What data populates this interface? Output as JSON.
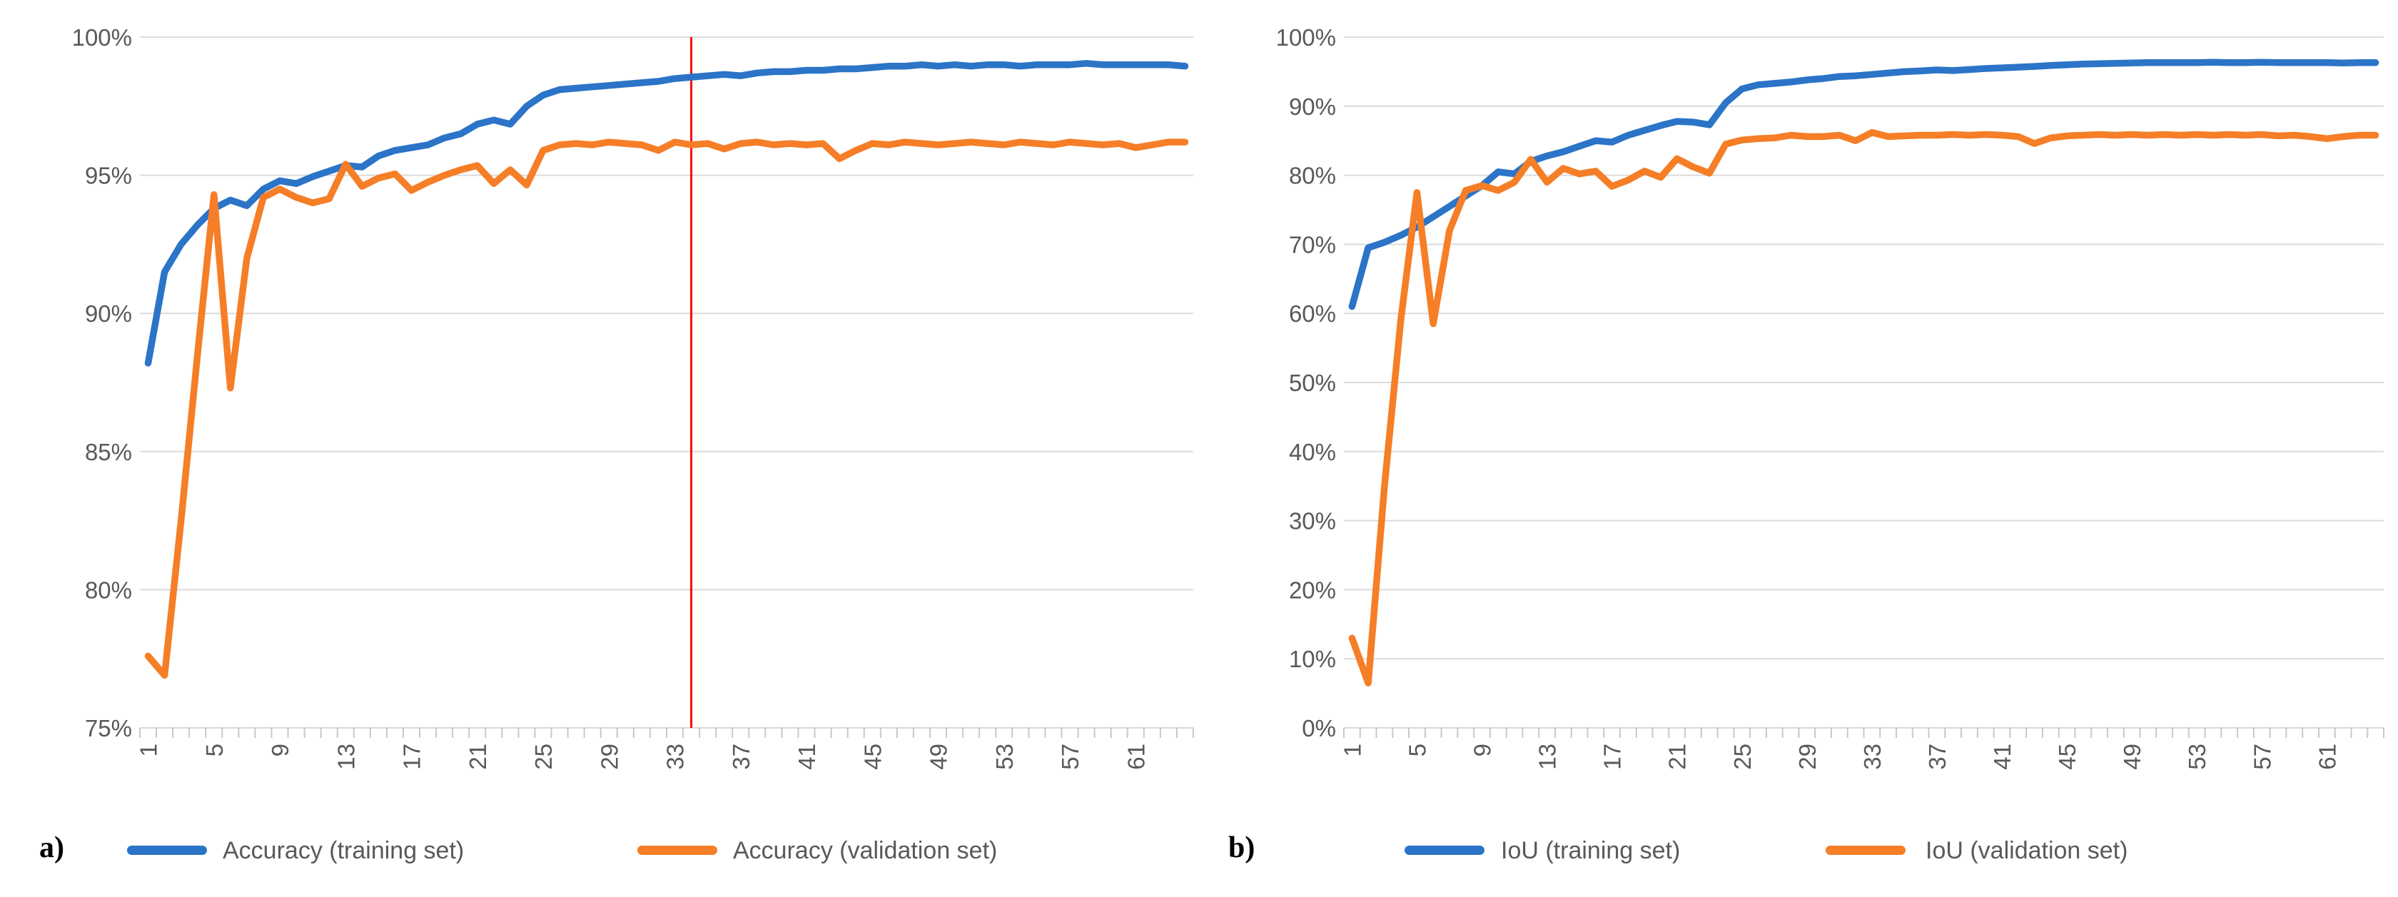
{
  "figure": {
    "background": "#FFFFFF",
    "grid_color": "#DBDBDB",
    "tick_color": "#C8C8C8",
    "axis_text_color": "#595959"
  },
  "chart_data": [
    {
      "type": "line",
      "panel_label": "a)",
      "title": "",
      "xlabel": "",
      "ylabel": "",
      "grid": true,
      "legend_position": "bottom",
      "x_count": 64,
      "x_range": [
        1,
        64
      ],
      "x_tick_values": [
        1,
        5,
        9,
        13,
        17,
        21,
        25,
        29,
        33,
        37,
        41,
        45,
        49,
        53,
        57,
        61
      ],
      "ylim": [
        75,
        100
      ],
      "y_tick_values": [
        100,
        95,
        90,
        85,
        80,
        75
      ],
      "y_tick_labels": [
        "100%",
        "95%",
        "90%",
        "85%",
        "80%",
        "75%"
      ],
      "vline": {
        "x": 34,
        "color": "#FF0000"
      },
      "series": [
        {
          "name": "Accuracy (training set)",
          "color": "#2B74C7",
          "values": [
            88.2,
            91.5,
            92.5,
            93.2,
            93.8,
            94.1,
            93.9,
            94.5,
            94.8,
            94.7,
            94.95,
            95.15,
            95.35,
            95.3,
            95.7,
            95.9,
            96.0,
            96.1,
            96.35,
            96.5,
            96.85,
            97.0,
            96.85,
            97.5,
            97.9,
            98.1,
            98.15,
            98.2,
            98.25,
            98.3,
            98.35,
            98.4,
            98.5,
            98.55,
            98.6,
            98.65,
            98.6,
            98.7,
            98.75,
            98.75,
            98.8,
            98.8,
            98.85,
            98.85,
            98.9,
            98.95,
            98.95,
            99.0,
            98.95,
            99.0,
            98.95,
            99.0,
            99.0,
            98.95,
            99.0,
            99.0,
            99.0,
            99.05,
            99.0,
            99.0,
            99.0,
            99.0,
            99.0,
            98.95
          ]
        },
        {
          "name": "Accuracy (validation set)",
          "color": "#F57E27",
          "values": [
            77.6,
            76.9,
            82.5,
            88.5,
            94.3,
            87.3,
            92.0,
            94.2,
            94.5,
            94.2,
            94.0,
            94.15,
            95.4,
            94.6,
            94.9,
            95.05,
            94.45,
            94.75,
            95.0,
            95.2,
            95.35,
            94.7,
            95.2,
            94.65,
            95.9,
            96.1,
            96.15,
            96.1,
            96.2,
            96.15,
            96.1,
            95.9,
            96.2,
            96.1,
            96.15,
            95.95,
            96.15,
            96.2,
            96.1,
            96.15,
            96.1,
            96.15,
            95.6,
            95.9,
            96.15,
            96.1,
            96.2,
            96.15,
            96.1,
            96.15,
            96.2,
            96.15,
            96.1,
            96.2,
            96.15,
            96.1,
            96.2,
            96.15,
            96.1,
            96.15,
            96.0,
            96.1,
            96.2,
            96.2
          ]
        }
      ]
    },
    {
      "type": "line",
      "panel_label": "b)",
      "title": "",
      "xlabel": "",
      "ylabel": "",
      "grid": true,
      "legend_position": "bottom",
      "x_count": 64,
      "x_range": [
        1,
        64
      ],
      "x_tick_values": [
        1,
        5,
        9,
        13,
        17,
        21,
        25,
        29,
        33,
        37,
        41,
        45,
        49,
        53,
        57,
        61
      ],
      "ylim": [
        0,
        100
      ],
      "y_tick_values": [
        100,
        90,
        80,
        70,
        60,
        50,
        40,
        30,
        20,
        10,
        0
      ],
      "y_tick_labels": [
        "100%",
        "90%",
        "80%",
        "70%",
        "60%",
        "50%",
        "40%",
        "30%",
        "20%",
        "10%",
        "0%"
      ],
      "vline": null,
      "series": [
        {
          "name": "IoU (training set)",
          "color": "#2B74C7",
          "values": [
            61.0,
            69.5,
            70.3,
            71.3,
            72.5,
            74.0,
            75.5,
            77.0,
            78.5,
            80.5,
            80.2,
            82.0,
            82.8,
            83.4,
            84.2,
            85.0,
            84.8,
            85.8,
            86.5,
            87.2,
            87.8,
            87.7,
            87.3,
            90.5,
            92.5,
            93.1,
            93.3,
            93.5,
            93.8,
            94.0,
            94.3,
            94.4,
            94.6,
            94.8,
            95.0,
            95.1,
            95.25,
            95.15,
            95.3,
            95.45,
            95.55,
            95.65,
            95.75,
            95.9,
            96.0,
            96.1,
            96.15,
            96.2,
            96.25,
            96.3,
            96.3,
            96.3,
            96.3,
            96.35,
            96.3,
            96.3,
            96.35,
            96.3,
            96.3,
            96.3,
            96.3,
            96.25,
            96.3,
            96.3
          ]
        },
        {
          "name": "IoU (validation set)",
          "color": "#F57E27",
          "values": [
            13.0,
            6.5,
            35.0,
            59.0,
            77.5,
            58.5,
            72.0,
            77.8,
            78.5,
            77.8,
            79.0,
            82.3,
            79.0,
            81.0,
            80.2,
            80.6,
            78.4,
            79.3,
            80.6,
            79.7,
            82.4,
            81.2,
            80.3,
            84.5,
            85.1,
            85.3,
            85.4,
            85.8,
            85.6,
            85.6,
            85.8,
            85.0,
            86.2,
            85.6,
            85.7,
            85.8,
            85.8,
            85.9,
            85.8,
            85.9,
            85.8,
            85.6,
            84.6,
            85.4,
            85.7,
            85.8,
            85.9,
            85.8,
            85.9,
            85.8,
            85.9,
            85.8,
            85.9,
            85.8,
            85.9,
            85.8,
            85.9,
            85.7,
            85.8,
            85.6,
            85.3,
            85.6,
            85.8,
            85.8
          ]
        }
      ]
    }
  ]
}
